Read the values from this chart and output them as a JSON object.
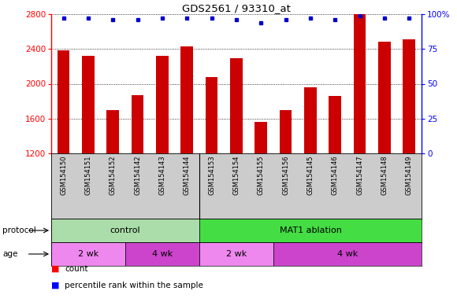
{
  "title": "GDS2561 / 93310_at",
  "samples": [
    "GSM154150",
    "GSM154151",
    "GSM154152",
    "GSM154142",
    "GSM154143",
    "GSM154144",
    "GSM154153",
    "GSM154154",
    "GSM154155",
    "GSM154156",
    "GSM154145",
    "GSM154146",
    "GSM154147",
    "GSM154148",
    "GSM154149"
  ],
  "counts": [
    2380,
    2320,
    1700,
    1870,
    2320,
    2430,
    2080,
    2290,
    1560,
    1700,
    1960,
    1860,
    2800,
    2480,
    2510
  ],
  "percentiles": [
    97,
    97,
    96,
    96,
    97,
    97,
    97,
    96,
    94,
    96,
    97,
    96,
    99,
    97,
    97
  ],
  "ylim_left": [
    1200,
    2800
  ],
  "ylim_right": [
    0,
    100
  ],
  "bar_color": "#cc0000",
  "dot_color": "#0000cc",
  "yticks_left": [
    1200,
    1600,
    2000,
    2400,
    2800
  ],
  "yticks_right": [
    0,
    25,
    50,
    75,
    100
  ],
  "label_bg": "#cccccc",
  "protocol_groups": [
    {
      "label": "control",
      "start": 0,
      "end": 6,
      "color": "#aaeea a"
    },
    {
      "label": "MAT1 ablation",
      "start": 6,
      "end": 15,
      "color": "#44dd44"
    }
  ],
  "age_groups": [
    {
      "label": "2 wk",
      "start": 0,
      "end": 3,
      "color": "#ee88ee"
    },
    {
      "label": "4 wk",
      "start": 3,
      "end": 6,
      "color": "#cc44cc"
    },
    {
      "label": "2 wk",
      "start": 6,
      "end": 9,
      "color": "#ee88ee"
    },
    {
      "label": "4 wk",
      "start": 9,
      "end": 15,
      "color": "#cc44cc"
    }
  ],
  "control_color": "#aaddaa",
  "mat1_color": "#44dd44",
  "age2wk_color": "#ee88ee",
  "age4wk_color": "#cc44cc"
}
